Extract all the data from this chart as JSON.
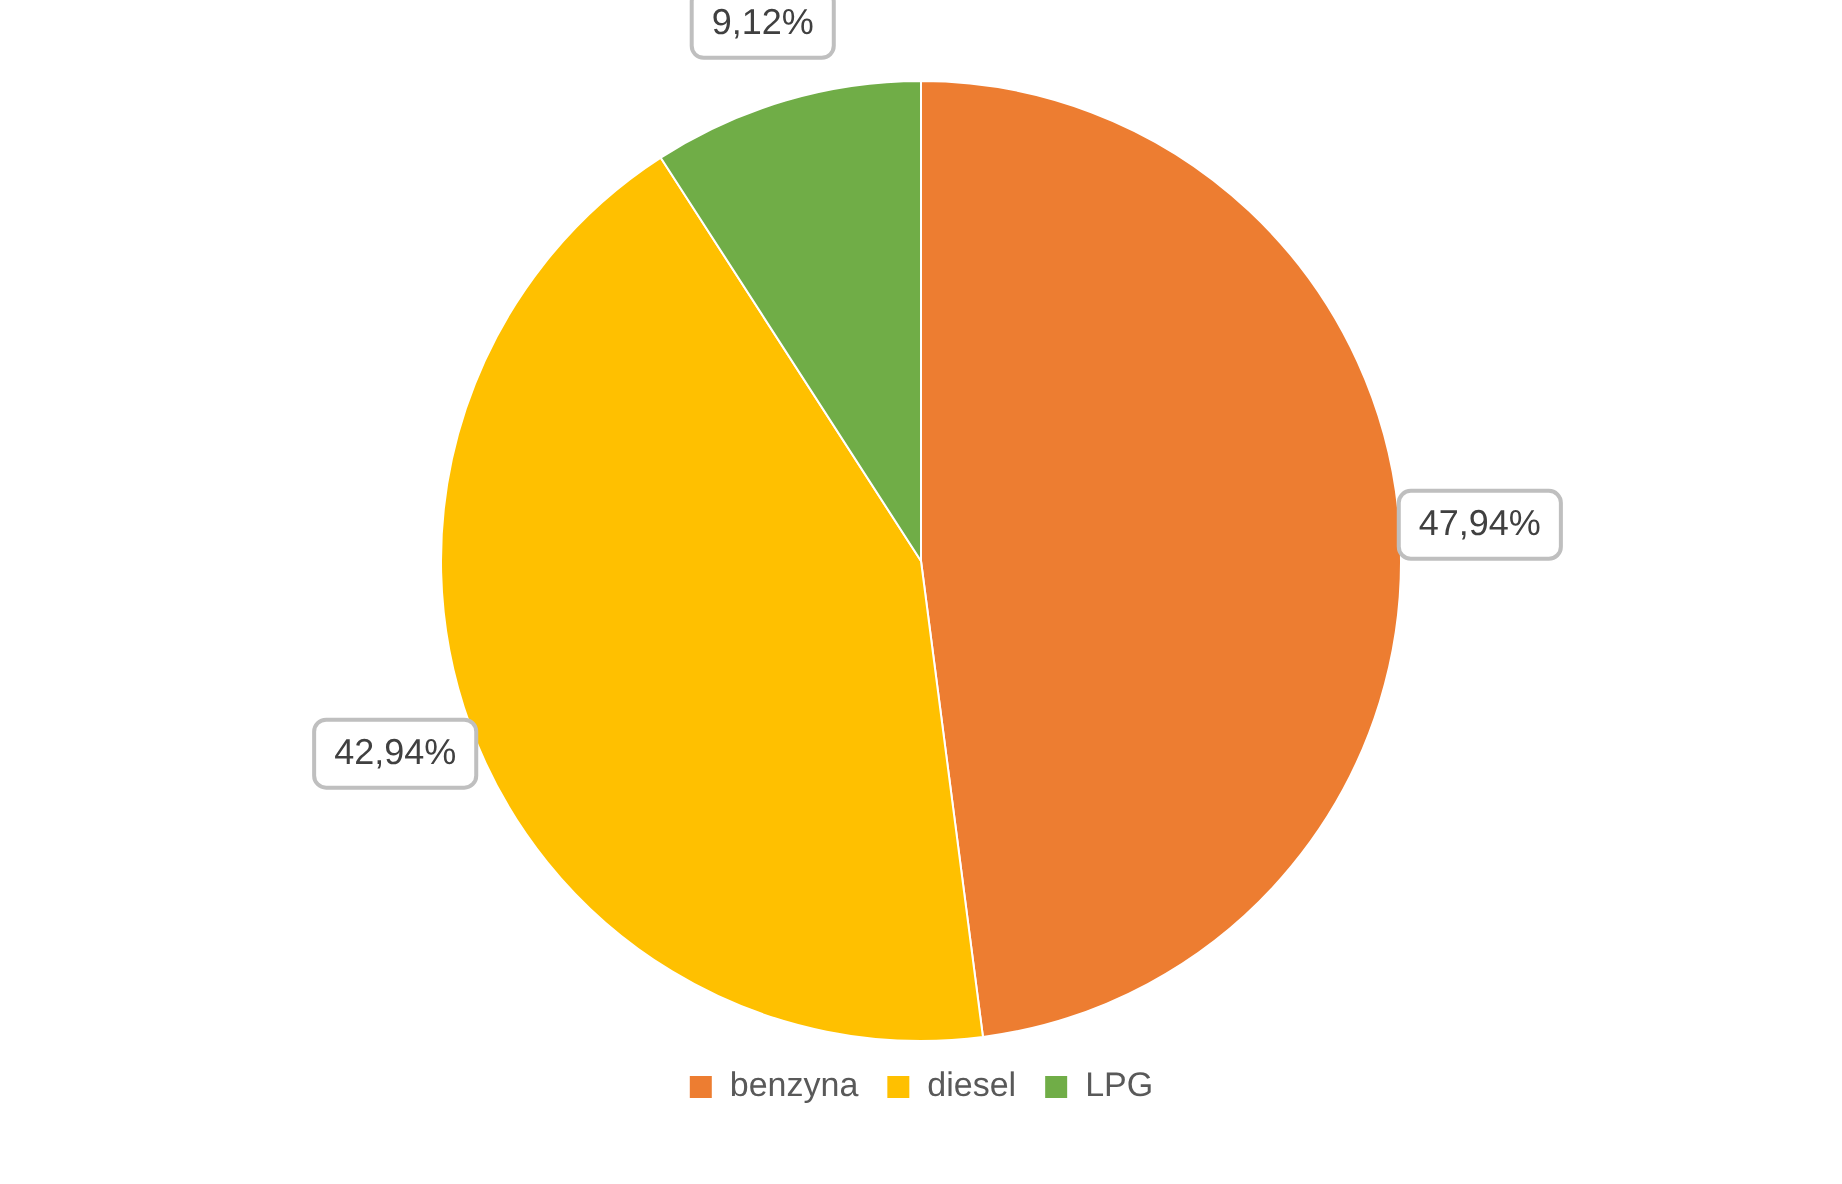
{
  "chart_data": {
    "type": "pie",
    "categories": [
      "benzyna",
      "diesel",
      "LPG"
    ],
    "values": [
      47.94,
      42.94,
      9.12
    ],
    "colors": [
      "#ed7d31",
      "#ffc000",
      "#70ad47"
    ],
    "value_labels": [
      "47,94%",
      "42,94%",
      "9,12%"
    ],
    "legend": "bottom"
  }
}
